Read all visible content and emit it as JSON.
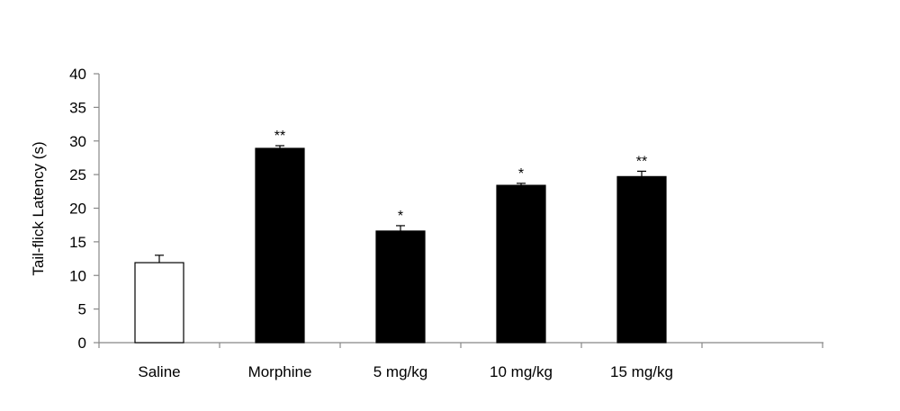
{
  "chart_data": {
    "type": "bar",
    "categories": [
      "Saline",
      "Morphine",
      "5 mg/kg",
      "10 mg/kg",
      "15 mg/kg"
    ],
    "values": [
      11.9,
      28.9,
      16.6,
      23.4,
      24.7
    ],
    "errors": [
      1.1,
      0.4,
      0.8,
      0.3,
      0.8
    ],
    "significance": [
      "",
      "**",
      "*",
      "*",
      "**"
    ],
    "bar_fill": [
      "#ffffff",
      "#000000",
      "#000000",
      "#000000",
      "#000000"
    ],
    "bar_stroke": "#000000",
    "axis_color": "#888888",
    "title": "",
    "xlabel": "",
    "ylabel": "Tail-flick Latency (s)",
    "ylim": [
      0,
      40
    ],
    "yticks": [
      0,
      5,
      10,
      15,
      20,
      25,
      30,
      35,
      40
    ],
    "grid": false,
    "legend": "none"
  }
}
